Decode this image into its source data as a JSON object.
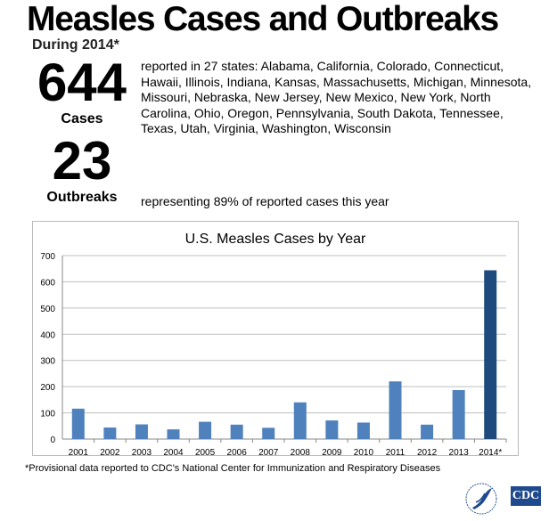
{
  "header": {
    "title": "Measles Cases and Outbreaks",
    "subtitle": "During 2014*"
  },
  "stats": {
    "cases_number": "644",
    "cases_label": "Cases",
    "cases_text": "reported in 27 states: Alabama, California, Colorado, Connecticut, Hawaii, Illinois, Indiana, Kansas, Massachusetts, Michigan, Minnesota, Missouri, Nebraska, New Jersey, New Mexico, New York, North Carolina, Ohio, Oregon, Pennsylvania, South Dakota, Tennessee, Texas, Utah, Virginia, Washington, Wisconsin",
    "outbreaks_number": "23",
    "outbreaks_label": "Outbreaks",
    "outbreaks_text": "representing 89% of reported cases this year"
  },
  "chart_data": {
    "type": "bar",
    "title": "U.S. Measles Cases by Year",
    "categories": [
      "2001",
      "2002",
      "2003",
      "2004",
      "2005",
      "2006",
      "2007",
      "2008",
      "2009",
      "2010",
      "2011",
      "2012",
      "2013",
      "2014*"
    ],
    "values": [
      116,
      44,
      56,
      37,
      66,
      55,
      43,
      140,
      71,
      63,
      220,
      55,
      187,
      644
    ],
    "ylim": [
      0,
      700
    ],
    "yticks": [
      0,
      100,
      200,
      300,
      400,
      500,
      600,
      700
    ],
    "xlabel": "",
    "ylabel": "",
    "grid": true,
    "colors": {
      "bar": "#4f81bd",
      "highlight": "#1f4a7e",
      "grid": "#bfbfbf"
    }
  },
  "footnote": "*Provisional data reported to CDC's National Center for Immunization and Respiratory Diseases",
  "logos": {
    "hhs": "Department of Health & Human Services USA",
    "cdc": "CDC"
  }
}
